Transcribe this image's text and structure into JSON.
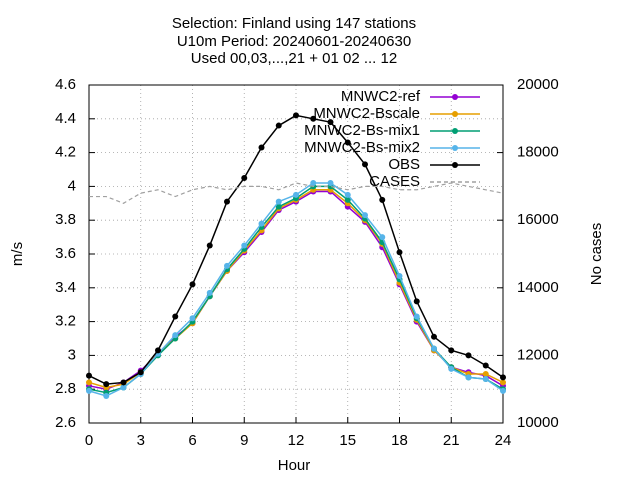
{
  "chart_data": {
    "type": "line",
    "title": [
      "Selection: Finland using    147 stations",
      "U10m   Period: 20240601-20240630",
      "Used 00,03,...,21 + 01 02 ... 12"
    ],
    "x_label": "Hour",
    "y_label": "m/s",
    "y2_label": "No cases",
    "x": [
      0,
      1,
      2,
      3,
      4,
      5,
      6,
      7,
      8,
      9,
      10,
      11,
      12,
      13,
      14,
      15,
      16,
      17,
      18,
      19,
      20,
      21,
      22,
      23,
      24
    ],
    "xlim": [
      0,
      24
    ],
    "xticks": [
      0,
      3,
      6,
      9,
      12,
      15,
      18,
      21,
      24
    ],
    "ylim": [
      2.6,
      4.6
    ],
    "yticks": [
      2.6,
      2.8,
      3,
      3.2,
      3.4,
      3.6,
      3.8,
      4,
      4.2,
      4.4,
      4.6
    ],
    "y2lim": [
      10000,
      20000
    ],
    "y2ticks": [
      10000,
      12000,
      14000,
      16000,
      18000,
      20000
    ],
    "grid": true,
    "legend": "top-right",
    "series": [
      {
        "name": "MNWC2-ref",
        "color": "#9400d3",
        "values": [
          2.82,
          2.8,
          2.84,
          2.91,
          3.01,
          3.11,
          3.19,
          3.35,
          3.5,
          3.61,
          3.73,
          3.86,
          3.91,
          3.97,
          3.97,
          3.88,
          3.79,
          3.64,
          3.42,
          3.2,
          3.03,
          2.93,
          2.9,
          2.88,
          2.82
        ]
      },
      {
        "name": "MNWC2-Bscale",
        "color": "#e69f00",
        "values": [
          2.84,
          2.81,
          2.83,
          2.9,
          3.01,
          3.1,
          3.19,
          3.35,
          3.5,
          3.62,
          3.74,
          3.87,
          3.92,
          3.98,
          3.98,
          3.9,
          3.8,
          3.66,
          3.43,
          3.21,
          3.03,
          2.93,
          2.89,
          2.89,
          2.84
        ]
      },
      {
        "name": "MNWC2-Bs-mix1",
        "color": "#009e73",
        "values": [
          2.8,
          2.78,
          2.81,
          2.89,
          3.0,
          3.1,
          3.2,
          3.35,
          3.51,
          3.63,
          3.76,
          3.88,
          3.93,
          4.0,
          4.0,
          3.92,
          3.81,
          3.67,
          3.45,
          3.22,
          3.04,
          2.93,
          2.87,
          2.86,
          2.8
        ]
      },
      {
        "name": "MNWC2-Bs-mix2",
        "color": "#56b4e9",
        "values": [
          2.79,
          2.76,
          2.81,
          2.89,
          3.01,
          3.12,
          3.22,
          3.37,
          3.53,
          3.65,
          3.78,
          3.91,
          3.95,
          4.02,
          4.02,
          3.95,
          3.83,
          3.7,
          3.47,
          3.23,
          3.04,
          2.92,
          2.87,
          2.86,
          2.79
        ]
      },
      {
        "name": "OBS",
        "color": "#000000",
        "values": [
          2.88,
          2.83,
          2.84,
          2.9,
          3.03,
          3.23,
          3.42,
          3.65,
          3.91,
          4.05,
          4.23,
          4.36,
          4.42,
          4.4,
          4.38,
          4.26,
          4.13,
          3.92,
          3.61,
          3.32,
          3.11,
          3.03,
          3.0,
          2.94,
          2.87
        ]
      },
      {
        "name": "CASES",
        "color": "#a0a0a0",
        "axis": "y2",
        "dashed": true,
        "values": [
          16700,
          16700,
          16500,
          16800,
          16900,
          16700,
          16900,
          17000,
          16900,
          17000,
          17000,
          16900,
          17100,
          17000,
          17000,
          16900,
          17000,
          17000,
          16900,
          16900,
          17000,
          17100,
          17000,
          16900,
          16800
        ]
      }
    ]
  }
}
